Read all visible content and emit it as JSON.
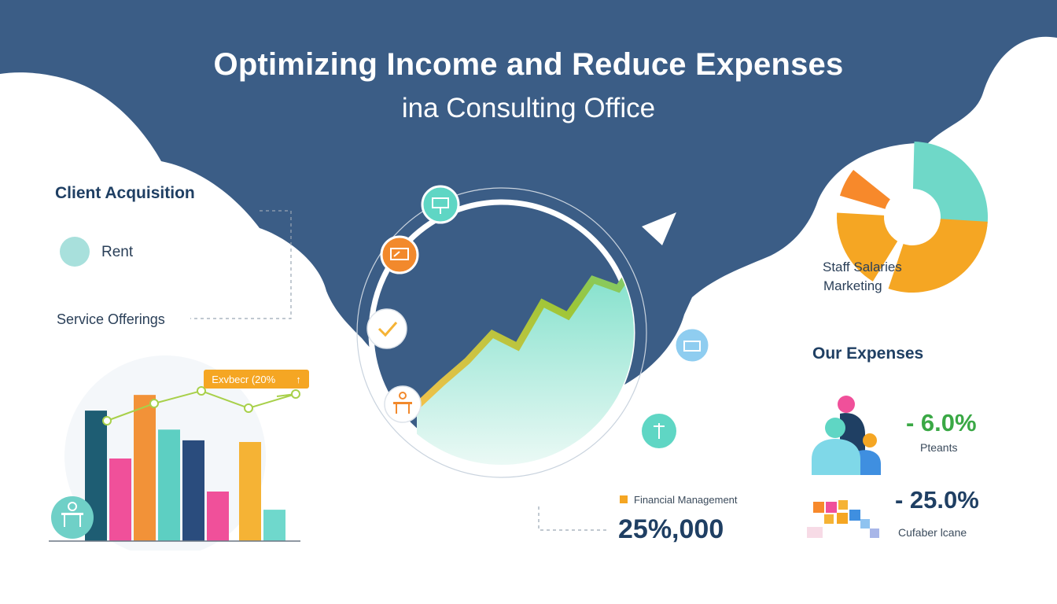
{
  "header": {
    "title": "Optimizing Income and Reduce Expenses",
    "subtitle": "ina Consulting Office"
  },
  "left_panel": {
    "heading": "Client Acquisition",
    "legend_label": "Rent",
    "legend_color": "#a8e0dc",
    "service_label": "Service Offerings",
    "callout_text": "Exvbecr (20%",
    "callout_arrow": "↑"
  },
  "bar_chart": {
    "bars": [
      {
        "value": 158,
        "color": "#1e5d73"
      },
      {
        "value": 100,
        "color": "#f0509a"
      },
      {
        "value": 177,
        "color": "#f29238"
      },
      {
        "value": 135,
        "color": "#5dcfc2"
      },
      {
        "value": 122,
        "color": "#2a4c7d"
      },
      {
        "value": 60,
        "color": "#f0509a"
      },
      {
        "value": 120,
        "color": "#f5b335"
      },
      {
        "value": 38,
        "color": "#6fd8cc"
      }
    ],
    "max_value": 200,
    "trend_points": [
      0.0,
      0.55,
      0.95,
      0.4,
      0.85
    ]
  },
  "center": {
    "growth_series": [
      0.05,
      0.18,
      0.3,
      0.45,
      0.38,
      0.62,
      0.55,
      0.75,
      0.7,
      0.9,
      1.0
    ],
    "icons": [
      "presentation-icon",
      "chart-board-icon",
      "checkmark-icon",
      "desk-icon",
      "folder-icon",
      "pin-icon"
    ]
  },
  "financial": {
    "label": "Financial Management",
    "label_marker_color": "#f5a623",
    "value": "25%,000"
  },
  "right_panel": {
    "donut_labels": [
      "Staff Salaries",
      "Marketing"
    ],
    "donut_segments": [
      {
        "value": 18,
        "color": "#f5a623"
      },
      {
        "value": 7,
        "color": "#f7892b"
      },
      {
        "value": 30,
        "color": "#6fd8c8"
      },
      {
        "value": 30,
        "color": "#f5a623"
      }
    ],
    "expenses_heading": "Our Expenses",
    "expense_items": [
      {
        "value": "- 6.0%",
        "label": "Pteants",
        "value_color": "#3aa845"
      },
      {
        "value": "- 25.0%",
        "label": "Cufaber lcane",
        "value_color": "#1f3f63"
      }
    ]
  }
}
